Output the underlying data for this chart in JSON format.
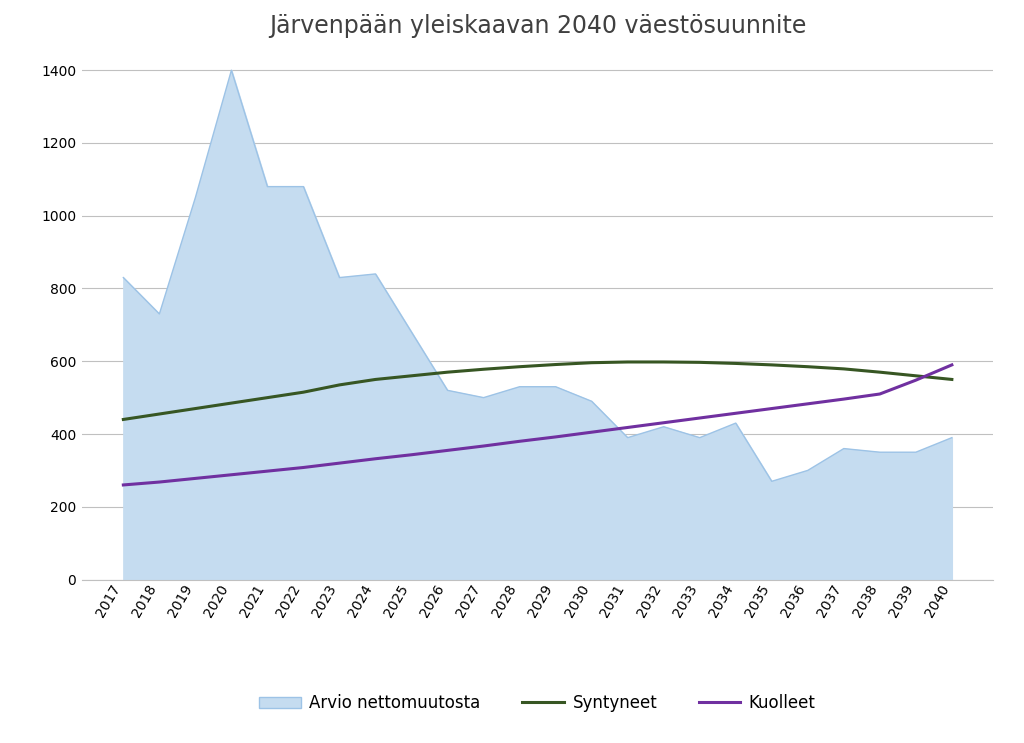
{
  "title": "Järvenpään yleiskaavan 2040 väestösuunnite",
  "years": [
    2017,
    2018,
    2019,
    2020,
    2021,
    2022,
    2023,
    2024,
    2025,
    2026,
    2027,
    2028,
    2029,
    2030,
    2031,
    2032,
    2033,
    2034,
    2035,
    2036,
    2037,
    2038,
    2039,
    2040
  ],
  "arvio": [
    830,
    730,
    1050,
    1400,
    1080,
    1080,
    830,
    840,
    680,
    520,
    500,
    530,
    530,
    490,
    390,
    420,
    390,
    430,
    270,
    300,
    360,
    350,
    350,
    390
  ],
  "syntyneet": [
    440,
    455,
    470,
    485,
    500,
    515,
    535,
    550,
    560,
    570,
    578,
    585,
    591,
    596,
    598,
    598,
    597,
    594,
    590,
    585,
    579,
    570,
    560,
    550
  ],
  "kuolleet": [
    260,
    268,
    278,
    288,
    298,
    308,
    320,
    332,
    343,
    355,
    367,
    380,
    392,
    405,
    418,
    431,
    444,
    457,
    470,
    483,
    496,
    510,
    548,
    590
  ],
  "arvio_border_color": "#9DC3E6",
  "arvio_fill_color": "#C5DCF0",
  "syntyneet_color": "#375623",
  "kuolleet_color": "#7030A0",
  "background_color": "#FFFFFF",
  "grid_color": "#C0C0C0",
  "ylim": [
    0,
    1450
  ],
  "yticks": [
    0,
    200,
    400,
    600,
    800,
    1000,
    1200,
    1400
  ],
  "title_fontsize": 17,
  "tick_fontsize": 10,
  "legend_labels": [
    "Arvio nettomuutosta",
    "Syntyneet",
    "Kuolleet"
  ],
  "legend_fontsize": 12
}
